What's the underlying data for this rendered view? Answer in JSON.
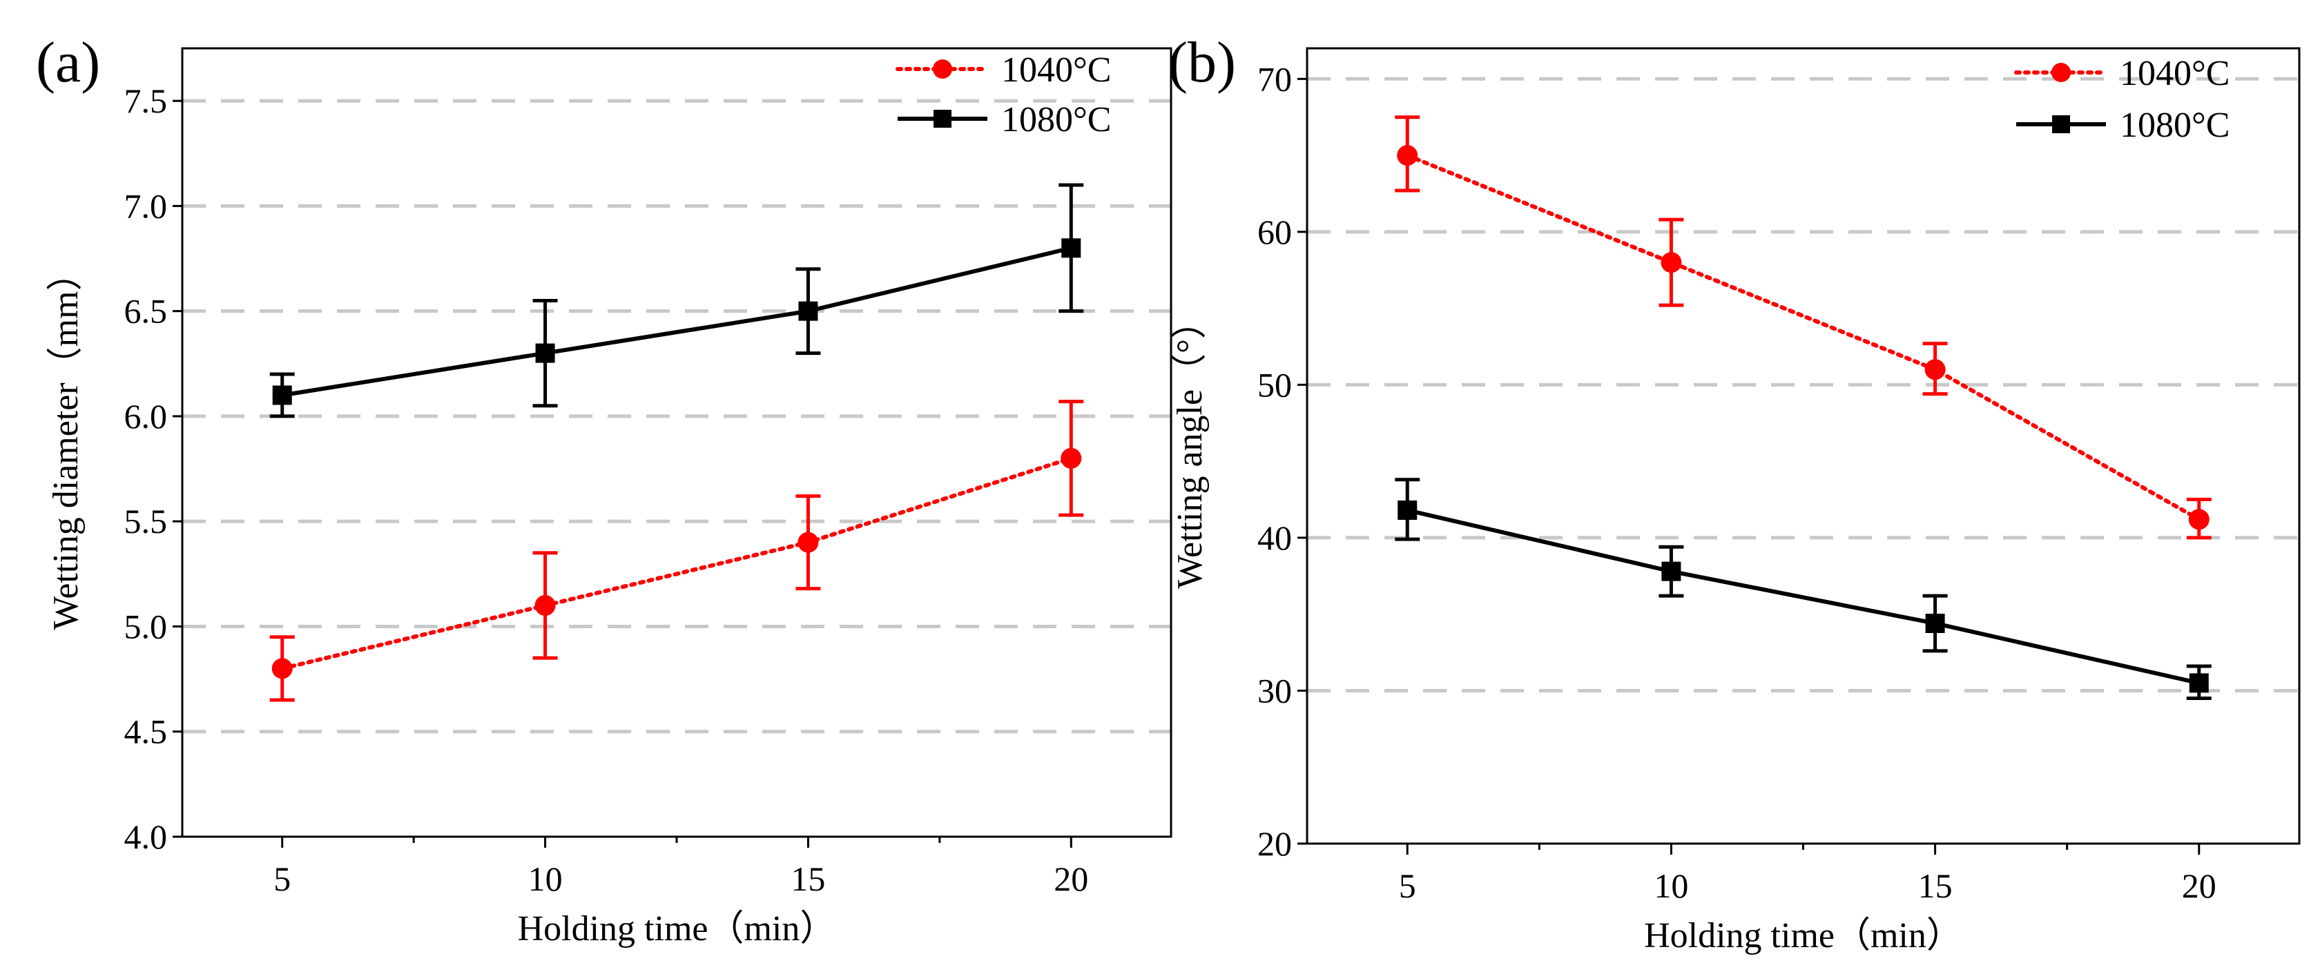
{
  "chart_data": [
    {
      "type": "line",
      "panel_label": "(a)",
      "title": "",
      "xlabel": "Holding time（min）",
      "ylabel": "Wetting diameter（mm）",
      "xlim": [
        3.1,
        21.9
      ],
      "ylim": [
        4.0,
        7.75
      ],
      "x_ticks": [
        5,
        10,
        15,
        20
      ],
      "x_tick_labels": [
        "5",
        "10",
        "15",
        "20"
      ],
      "y_ticks": [
        4.0,
        4.5,
        5.0,
        5.5,
        6.0,
        6.5,
        7.0,
        7.5
      ],
      "y_tick_labels": [
        "4.0",
        "4.5",
        "5.0",
        "5.5",
        "6.0",
        "6.5",
        "7.0",
        "7.5"
      ],
      "grid": "horizontal dashed",
      "legend_position": "top-right",
      "series": [
        {
          "name": "1040°C",
          "color": "#ff0000",
          "line_style": "dotted",
          "marker": "circle",
          "x": [
            5,
            10,
            15,
            20
          ],
          "y": [
            4.8,
            5.1,
            5.4,
            5.8
          ],
          "y_err_low": [
            4.65,
            4.85,
            5.18,
            5.53
          ],
          "y_err_high": [
            4.95,
            5.35,
            5.62,
            6.07
          ]
        },
        {
          "name": "1080°C",
          "color": "#000000",
          "line_style": "solid",
          "marker": "square",
          "x": [
            5,
            10,
            15,
            20
          ],
          "y": [
            6.1,
            6.3,
            6.5,
            6.8
          ],
          "y_err_low": [
            6.0,
            6.05,
            6.3,
            6.5
          ],
          "y_err_high": [
            6.2,
            6.55,
            6.7,
            7.1
          ]
        }
      ]
    },
    {
      "type": "line",
      "panel_label": "(b)",
      "title": "",
      "xlabel": "Holding time（min）",
      "ylabel": "Wetting angle（°）",
      "xlim": [
        3.1,
        21.9
      ],
      "ylim": [
        20,
        72
      ],
      "x_ticks": [
        5,
        10,
        15,
        20
      ],
      "x_tick_labels": [
        "5",
        "10",
        "15",
        "20"
      ],
      "y_ticks": [
        20,
        30,
        40,
        50,
        60,
        70
      ],
      "y_tick_labels": [
        "20",
        "30",
        "40",
        "50",
        "60",
        "70"
      ],
      "grid": "horizontal dashed",
      "legend_position": "top-right",
      "series": [
        {
          "name": "1040°C",
          "color": "#ff0000",
          "line_style": "dotted",
          "marker": "circle",
          "x": [
            5,
            10,
            15,
            20
          ],
          "y": [
            65.0,
            58.0,
            51.0,
            41.2
          ],
          "y_err_low": [
            62.7,
            55.2,
            49.4,
            40.0
          ],
          "y_err_high": [
            67.5,
            60.8,
            52.7,
            42.5
          ]
        },
        {
          "name": "1080°C",
          "color": "#000000",
          "line_style": "solid",
          "marker": "square",
          "x": [
            5,
            10,
            15,
            20
          ],
          "y": [
            41.8,
            37.8,
            34.4,
            30.5
          ],
          "y_err_low": [
            39.9,
            36.2,
            32.6,
            29.5
          ],
          "y_err_high": [
            43.8,
            39.4,
            36.2,
            31.6
          ]
        }
      ]
    }
  ]
}
